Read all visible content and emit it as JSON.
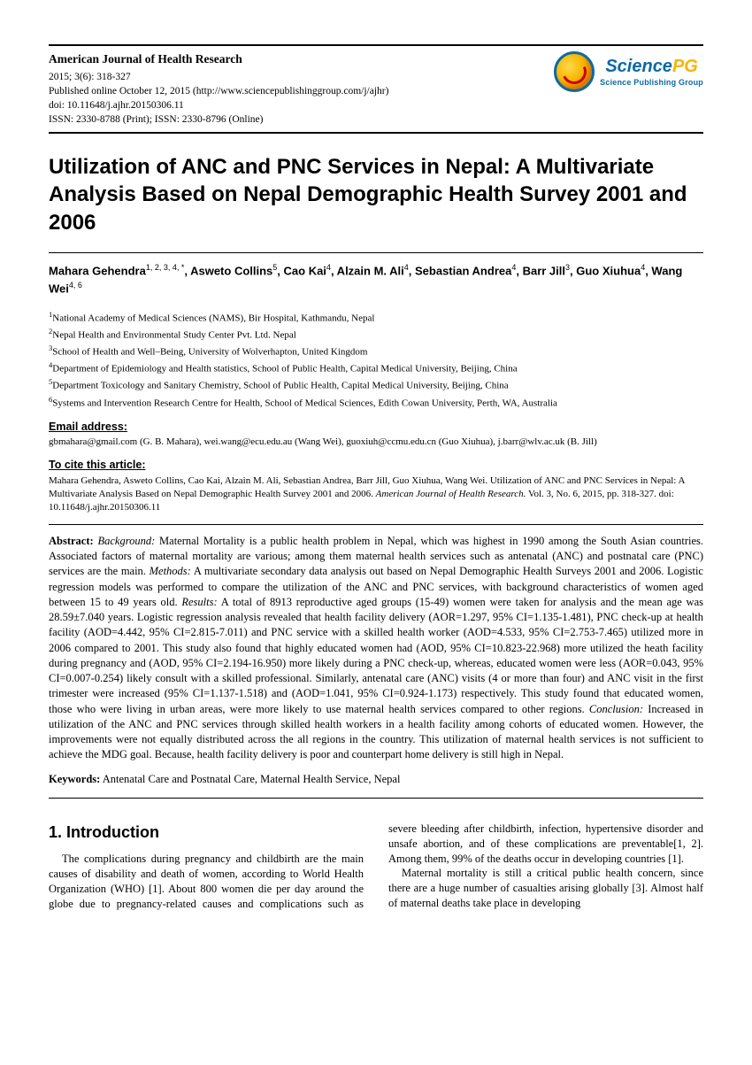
{
  "header": {
    "journal_title": "American Journal of Health Research",
    "issue_line": "2015; 3(6): 318-327",
    "pub_line": "Published online October 12, 2015 (http://www.sciencepublishinggroup.com/j/ajhr)",
    "doi_line": "doi: 10.11648/j.ajhr.20150306.11",
    "issn_line": "ISSN: 2330-8788 (Print); ISSN: 2330-8796 (Online)",
    "logo_brand_a": "Science",
    "logo_brand_b": "PG",
    "logo_sub": "Science Publishing Group"
  },
  "title": "Utilization of ANC and PNC Services in Nepal: A Multivariate Analysis Based on Nepal Demographic Health Survey 2001 and 2006",
  "authors_html": "Mahara Gehendra<sup>1, 2, 3, 4, *</sup>, Asweto Collins<sup>5</sup>, Cao Kai<sup>4</sup>, Alzain M. Ali<sup>4</sup>, Sebastian Andrea<sup>4</sup>, Barr Jill<sup>3</sup>, Guo Xiuhua<sup>4</sup>, Wang Wei<sup>4, 6</sup>",
  "affiliations": [
    "National Academy of Medical Sciences (NAMS), Bir Hospital, Kathmandu, Nepal",
    "Nepal Health and Environmental Study Center Pvt. Ltd. Nepal",
    "School of Health and Well–Being, University of Wolverhapton, United Kingdom",
    "Department of Epidemiology and Health statistics, School of Public Health, Capital Medical University, Beijing, China",
    "Department Toxicology and Sanitary Chemistry, School of Public Health, Capital Medical University, Beijing, China",
    "Systems and Intervention Research Centre for Health, School of Medical Sciences, Edith Cowan University, Perth, WA, Australia"
  ],
  "email_label": "Email address:",
  "email_line": "gbmahara@gmail.com (G. B. Mahara), wei.wang@ecu.edu.au (Wang Wei), guoxiuh@ccmu.edu.cn (Guo Xiuhua), j.barr@wlv.ac.uk (B. Jill)",
  "cite_label": "To cite this article:",
  "cite_text_a": "Mahara Gehendra, Asweto Collins, Cao Kai, Alzain M. Ali, Sebastian Andrea, Barr Jill, Guo Xiuhua, Wang Wei. Utilization of ANC and PNC Services in Nepal: A Multivariate Analysis Based on Nepal Demographic Health Survey 2001 and 2006. ",
  "cite_text_journal": "American Journal of Health Research.",
  "cite_text_b": " Vol. 3, No. 6, 2015, pp. 318-327. doi: 10.11648/j.ajhr.20150306.11",
  "abstract": {
    "label": "Abstract:",
    "bg_label": "Background:",
    "bg": " Maternal Mortality is a public health problem in Nepal, which was highest in 1990 among the South Asian countries. Associated factors of maternal mortality are various; among them maternal health services such as antenatal (ANC) and postnatal care (PNC) services are the main. ",
    "me_label": "Methods:",
    "me": " A multivariate secondary data analysis out based on Nepal Demographic Health Surveys 2001 and 2006. Logistic regression models was performed to compare the utilization of the ANC and PNC services, with background characteristics of women aged between 15 to 49 years old. ",
    "re_label": "Results:",
    "re": " A total of 8913 reproductive aged groups (15-49) women were taken for analysis and the mean age was 28.59±7.040 years. Logistic regression analysis revealed that health facility delivery (AOR=1.297, 95% CI=1.135-1.481), PNC check-up at health facility (AOD=4.442, 95% CI=2.815-7.011) and PNC service with a skilled health worker (AOD=4.533, 95% CI=2.753-7.465) utilized more in 2006 compared to 2001. This study also found that highly educated women had (AOD, 95% CI=10.823-22.968) more utilized the heath facility during pregnancy and (AOD, 95% CI=2.194-16.950) more likely during a PNC check-up, whereas, educated women were less (AOR=0.043, 95% CI=0.007-0.254) likely consult with a skilled professional. Similarly, antenatal care (ANC) visits (4 or more than four) and ANC visit in the first trimester were increased (95% CI=1.137-1.518) and (AOD=1.041, 95% CI=0.924-1.173) respectively. This study found that educated women, those who were living in urban areas, were more likely to use maternal health services compared to other regions. ",
    "co_label": "Conclusion:",
    "co": " Increased in utilization of the ANC and PNC services through skilled health workers in a health facility among cohorts of educated women. However, the improvements were not equally distributed across the all regions in the country. This utilization of maternal health services is not sufficient to achieve the MDG goal. Because, health facility delivery is poor and counterpart home delivery is still high in Nepal."
  },
  "keywords_label": "Keywords:",
  "keywords": " Antenatal Care and Postnatal Care, Maternal Health Service, Nepal",
  "intro_heading": "1. Introduction",
  "intro_p1": "The complications during pregnancy and childbirth are the main causes of disability and death of women, according to World Health Organization (WHO) [1]. About 800 women die per day around the globe due to pregnancy-related causes and complications such as severe bleeding after childbirth, infection, hypertensive disorder and unsafe abortion, and of these complications are preventable[1, 2]. Among them, 99% of the deaths occur in developing countries [1].",
  "intro_p2": "Maternal mortality is still a critical public health concern, since there are a huge number of casualties arising globally [3]. Almost half of maternal deaths take place in developing"
}
